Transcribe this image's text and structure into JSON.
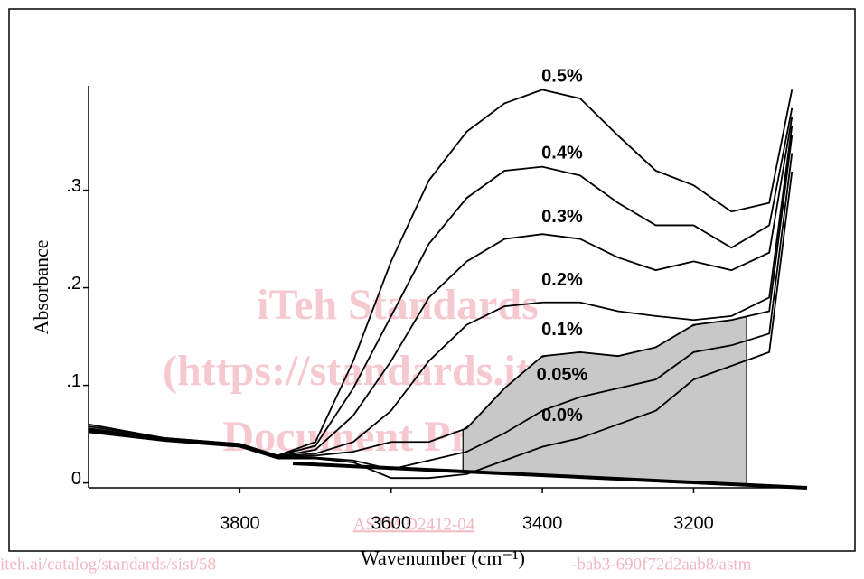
{
  "chart_data": {
    "type": "line",
    "x_label": "Wavenumber (cm⁻¹)",
    "y_label": "Absorbance",
    "xlim": [
      4000,
      3050
    ],
    "ylim": [
      -0.005,
      0.407
    ],
    "xticks": [
      3800,
      3600,
      3400,
      3200
    ],
    "yticks": [
      0,
      {
        "value": 0.1,
        "label": ".1"
      },
      {
        "value": 0.2,
        "label": ".2"
      },
      {
        "value": 0.3,
        "label": ".3"
      }
    ],
    "line_color": "#000000",
    "x": [
      4000,
      3900,
      3800,
      3750,
      3700,
      3650,
      3600,
      3550,
      3500,
      3450,
      3400,
      3350,
      3300,
      3250,
      3200,
      3150,
      3100,
      3070
    ],
    "series": [
      {
        "name": "0.5%",
        "values": [
          0.06,
          0.046,
          0.04,
          0.028,
          0.042,
          0.125,
          0.227,
          0.31,
          0.36,
          0.389,
          0.403,
          0.394,
          0.356,
          0.32,
          0.305,
          0.278,
          0.287,
          0.403
        ]
      },
      {
        "name": "0.4%",
        "values": [
          0.058,
          0.046,
          0.04,
          0.028,
          0.038,
          0.097,
          0.171,
          0.245,
          0.292,
          0.32,
          0.324,
          0.315,
          0.287,
          0.264,
          0.264,
          0.241,
          0.264,
          0.384
        ]
      },
      {
        "name": "0.3%",
        "values": [
          0.056,
          0.045,
          0.039,
          0.027,
          0.034,
          0.069,
          0.125,
          0.19,
          0.227,
          0.25,
          0.255,
          0.25,
          0.231,
          0.218,
          0.227,
          0.218,
          0.236,
          0.375
        ]
      },
      {
        "name": "0.2%",
        "values": [
          0.055,
          0.045,
          0.039,
          0.027,
          0.03,
          0.042,
          0.074,
          0.125,
          0.162,
          0.181,
          0.185,
          0.185,
          0.176,
          0.171,
          0.167,
          0.171,
          0.19,
          0.366
        ]
      },
      {
        "name": "0.1%",
        "values": [
          0.054,
          0.044,
          0.038,
          0.026,
          0.028,
          0.032,
          0.042,
          0.042,
          0.056,
          0.097,
          0.13,
          0.134,
          0.13,
          0.139,
          0.162,
          0.167,
          0.176,
          0.356
        ]
      },
      {
        "name": "0.05%",
        "values": [
          0.053,
          0.044,
          0.038,
          0.026,
          0.026,
          0.023,
          0.014,
          0.023,
          0.032,
          0.051,
          0.074,
          0.088,
          0.097,
          0.106,
          0.134,
          0.141,
          0.153,
          0.338
        ]
      },
      {
        "name": "0.0%",
        "values": [
          0.052,
          0.043,
          0.037,
          0.025,
          0.025,
          0.021,
          0.005,
          0.005,
          0.009,
          0.023,
          0.037,
          0.046,
          0.06,
          0.074,
          0.106,
          0.12,
          0.134,
          0.319
        ]
      }
    ],
    "baseline": {
      "x": [
        3730,
        3050
      ],
      "values": [
        0.02,
        -0.005
      ]
    },
    "shaded_region": [
      3505,
      3130
    ],
    "shaded_color": "#c8c8c8"
  },
  "watermark": [
    "iTeh Standards",
    "(https://standards.iteh.ai)",
    "Document Preview"
  ],
  "footer_code": "ASTM D2412-04",
  "footer_url": [
    "iteh.ai/catalog/standards/sist/58",
    "-bab3-690f72d2aab8/astm"
  ]
}
